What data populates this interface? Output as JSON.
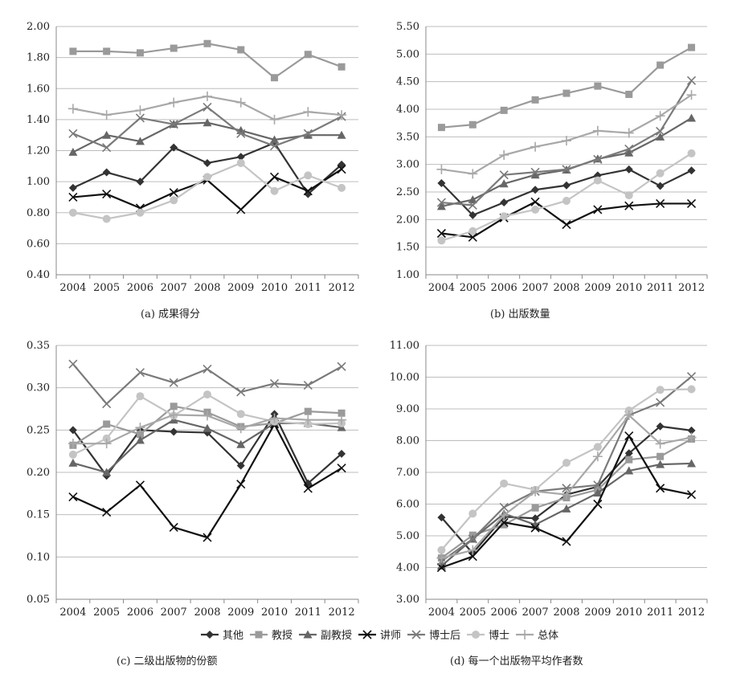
{
  "legend": {
    "items": [
      {
        "name": "其他",
        "color": "#333333",
        "marker": "diamond"
      },
      {
        "name": "教授",
        "color": "#9a9a9a",
        "marker": "square"
      },
      {
        "name": "副教授",
        "color": "#666666",
        "marker": "triangle"
      },
      {
        "name": "讲师",
        "color": "#111111",
        "marker": "x"
      },
      {
        "name": "博士后",
        "color": "#7a7a7a",
        "marker": "x"
      },
      {
        "name": "博士",
        "color": "#c4c4c4",
        "marker": "circle"
      },
      {
        "name": "总体",
        "color": "#a8a8a8",
        "marker": "plus"
      }
    ]
  },
  "chart_data": [
    {
      "type": "line",
      "caption": "(a)  成果得分",
      "x": [
        "2004",
        "2005",
        "2006",
        "2007",
        "2008",
        "2009",
        "2010",
        "2011",
        "2012"
      ],
      "ylim": [
        0.4,
        2.0
      ],
      "yticks": [
        "0.40",
        "0.60",
        "0.80",
        "1.00",
        "1.20",
        "1.40",
        "1.60",
        "1.80",
        "2.00"
      ],
      "grid": true,
      "series": [
        {
          "name": "其他",
          "values": [
            0.96,
            1.06,
            1.0,
            1.22,
            1.12,
            1.16,
            1.25,
            0.92,
            1.11
          ]
        },
        {
          "name": "教授",
          "values": [
            1.84,
            1.84,
            1.83,
            1.86,
            1.89,
            1.85,
            1.67,
            1.82,
            1.74
          ]
        },
        {
          "name": "副教授",
          "values": [
            1.19,
            1.3,
            1.26,
            1.37,
            1.38,
            1.33,
            1.27,
            1.3,
            1.3
          ]
        },
        {
          "name": "讲师",
          "values": [
            0.9,
            0.92,
            0.83,
            0.93,
            1.01,
            0.82,
            1.03,
            0.94,
            1.08
          ]
        },
        {
          "name": "博士后",
          "values": [
            1.31,
            1.22,
            1.41,
            1.37,
            1.48,
            1.31,
            1.23,
            1.31,
            1.42
          ]
        },
        {
          "name": "博士",
          "values": [
            0.8,
            0.76,
            0.8,
            0.88,
            1.03,
            1.12,
            0.94,
            1.04,
            0.96
          ]
        },
        {
          "name": "总体",
          "values": [
            1.47,
            1.43,
            1.46,
            1.51,
            1.55,
            1.51,
            1.4,
            1.45,
            1.43
          ]
        }
      ]
    },
    {
      "type": "line",
      "caption": "(b)  出版数量",
      "x": [
        "2004",
        "2005",
        "2006",
        "2007",
        "2008",
        "2009",
        "2010",
        "2011",
        "2012"
      ],
      "ylim": [
        1.0,
        5.5
      ],
      "yticks": [
        "1.00",
        "1.50",
        "2.00",
        "2.50",
        "3.00",
        "3.50",
        "4.00",
        "4.50",
        "5.00",
        "5.50"
      ],
      "grid": true,
      "series": [
        {
          "name": "其他",
          "values": [
            2.66,
            2.08,
            2.31,
            2.54,
            2.62,
            2.8,
            2.91,
            2.61,
            2.89
          ]
        },
        {
          "name": "教授",
          "values": [
            3.67,
            3.72,
            3.98,
            4.17,
            4.29,
            4.42,
            4.27,
            4.8,
            5.12
          ]
        },
        {
          "name": "副教授",
          "values": [
            2.24,
            2.36,
            2.65,
            2.81,
            2.9,
            3.1,
            3.21,
            3.5,
            3.84
          ]
        },
        {
          "name": "讲师",
          "values": [
            1.75,
            1.68,
            2.03,
            2.32,
            1.91,
            2.18,
            2.25,
            2.29,
            2.29
          ]
        },
        {
          "name": "博士后",
          "values": [
            2.31,
            2.26,
            2.81,
            2.86,
            2.91,
            3.09,
            3.28,
            3.6,
            4.52
          ]
        },
        {
          "name": "博士",
          "values": [
            1.62,
            1.79,
            2.06,
            2.18,
            2.34,
            2.71,
            2.44,
            2.84,
            3.2
          ]
        },
        {
          "name": "总体",
          "values": [
            2.91,
            2.83,
            3.17,
            3.32,
            3.43,
            3.61,
            3.57,
            3.88,
            4.26
          ]
        }
      ]
    },
    {
      "type": "line",
      "caption": "(c)  二级出版物的份额",
      "x": [
        "2004",
        "2005",
        "2006",
        "2007",
        "2008",
        "2009",
        "2010",
        "2011",
        "2012"
      ],
      "ylim": [
        0.05,
        0.35
      ],
      "yticks": [
        "0.05",
        "0.10",
        "0.15",
        "0.20",
        "0.25",
        "0.30",
        "0.35"
      ],
      "grid": true,
      "series": [
        {
          "name": "其他",
          "values": [
            0.25,
            0.196,
            0.25,
            0.248,
            0.247,
            0.208,
            0.269,
            0.187,
            0.222
          ]
        },
        {
          "name": "教授",
          "values": [
            0.232,
            0.257,
            0.245,
            0.278,
            0.271,
            0.254,
            0.258,
            0.272,
            0.27
          ]
        },
        {
          "name": "副教授",
          "values": [
            0.211,
            0.2,
            0.238,
            0.262,
            0.252,
            0.233,
            0.258,
            0.258,
            0.253
          ]
        },
        {
          "name": "讲师",
          "values": [
            0.171,
            0.153,
            0.185,
            0.135,
            0.123,
            0.186,
            0.257,
            0.181,
            0.205
          ]
        },
        {
          "name": "博士后",
          "values": [
            0.328,
            0.281,
            0.318,
            0.306,
            0.322,
            0.295,
            0.305,
            0.303,
            0.325
          ]
        },
        {
          "name": "博士",
          "values": [
            0.221,
            0.24,
            0.29,
            0.267,
            0.292,
            0.269,
            0.26,
            0.257,
            0.258
          ]
        },
        {
          "name": "总体",
          "values": [
            0.234,
            0.234,
            0.253,
            0.268,
            0.267,
            0.252,
            0.264,
            0.262,
            0.262
          ]
        }
      ]
    },
    {
      "type": "line",
      "caption": "(d)  每一个出版物平均作者数",
      "x": [
        "2004",
        "2005",
        "2006",
        "2007",
        "2008",
        "2009",
        "2010",
        "2011",
        "2012"
      ],
      "ylim": [
        3.0,
        11.0
      ],
      "yticks": [
        "3.00",
        "4.00",
        "5.00",
        "6.00",
        "7.00",
        "8.00",
        "9.00",
        "10.00",
        "11.00"
      ],
      "grid": true,
      "series": [
        {
          "name": "其他",
          "values": [
            5.58,
            4.45,
            5.6,
            5.55,
            6.3,
            6.55,
            7.6,
            8.45,
            8.32
          ]
        },
        {
          "name": "教授",
          "values": [
            4.3,
            5.02,
            5.35,
            5.88,
            6.2,
            6.45,
            7.4,
            7.5,
            8.05
          ]
        },
        {
          "name": "副教授",
          "values": [
            4.05,
            4.9,
            5.7,
            5.35,
            5.85,
            6.35,
            7.05,
            7.25,
            7.28
          ]
        },
        {
          "name": "讲师",
          "values": [
            4.0,
            4.35,
            5.42,
            5.25,
            4.82,
            6.0,
            8.15,
            6.5,
            6.3
          ]
        },
        {
          "name": "博士后",
          "values": [
            4.2,
            4.9,
            5.9,
            6.4,
            6.5,
            6.6,
            8.8,
            9.2,
            10.02
          ]
        },
        {
          "name": "博士",
          "values": [
            4.55,
            5.7,
            6.65,
            6.45,
            7.3,
            7.8,
            8.95,
            9.6,
            9.62
          ]
        },
        {
          "name": "总体",
          "values": [
            4.3,
            4.55,
            5.65,
            6.4,
            6.3,
            7.5,
            8.8,
            7.9,
            8.1
          ]
        }
      ]
    }
  ]
}
